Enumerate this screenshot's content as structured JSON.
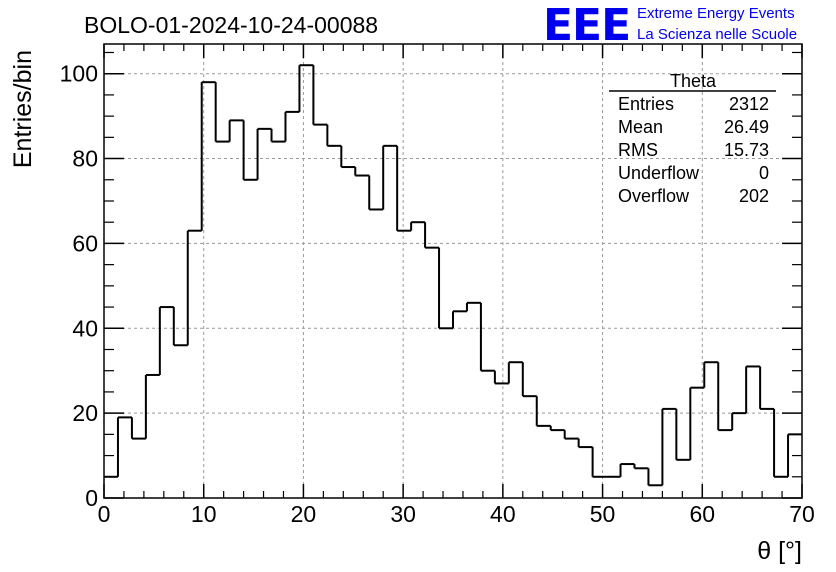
{
  "chart_data": {
    "type": "histogram",
    "title": "BOLO-01-2024-10-24-00088",
    "xlabel": "θ [°]",
    "ylabel": "Entries/bin",
    "xlim": [
      0,
      70
    ],
    "ylim": [
      0,
      107
    ],
    "x_ticks": [
      "0",
      "10",
      "20",
      "30",
      "40",
      "50",
      "60",
      "70"
    ],
    "y_ticks": [
      "0",
      "20",
      "40",
      "60",
      "80",
      "100"
    ],
    "grid": true,
    "bin_width": 1.4,
    "values": [
      5,
      19,
      14,
      29,
      45,
      36,
      63,
      98,
      84,
      89,
      75,
      87,
      84,
      91,
      102,
      88,
      83,
      78,
      76,
      68,
      83,
      63,
      65,
      59,
      40,
      44,
      46,
      30,
      27,
      32,
      24,
      17,
      16,
      14,
      12,
      5,
      5,
      8,
      7,
      3,
      21,
      9,
      26,
      32,
      16,
      20,
      31,
      21,
      5,
      15
    ],
    "stats_box": {
      "title": "Theta",
      "rows": [
        {
          "label": "Entries",
          "value": "2312"
        },
        {
          "label": "Mean",
          "value": "26.49"
        },
        {
          "label": "RMS",
          "value": "15.73"
        },
        {
          "label": "Underflow",
          "value": "0"
        },
        {
          "label": "Overflow",
          "value": "202"
        }
      ]
    }
  },
  "logo": {
    "text": "EEE",
    "line1": "Extreme Energy Events",
    "line2": "La Scienza nelle Scuole",
    "color": "#0000ee"
  }
}
